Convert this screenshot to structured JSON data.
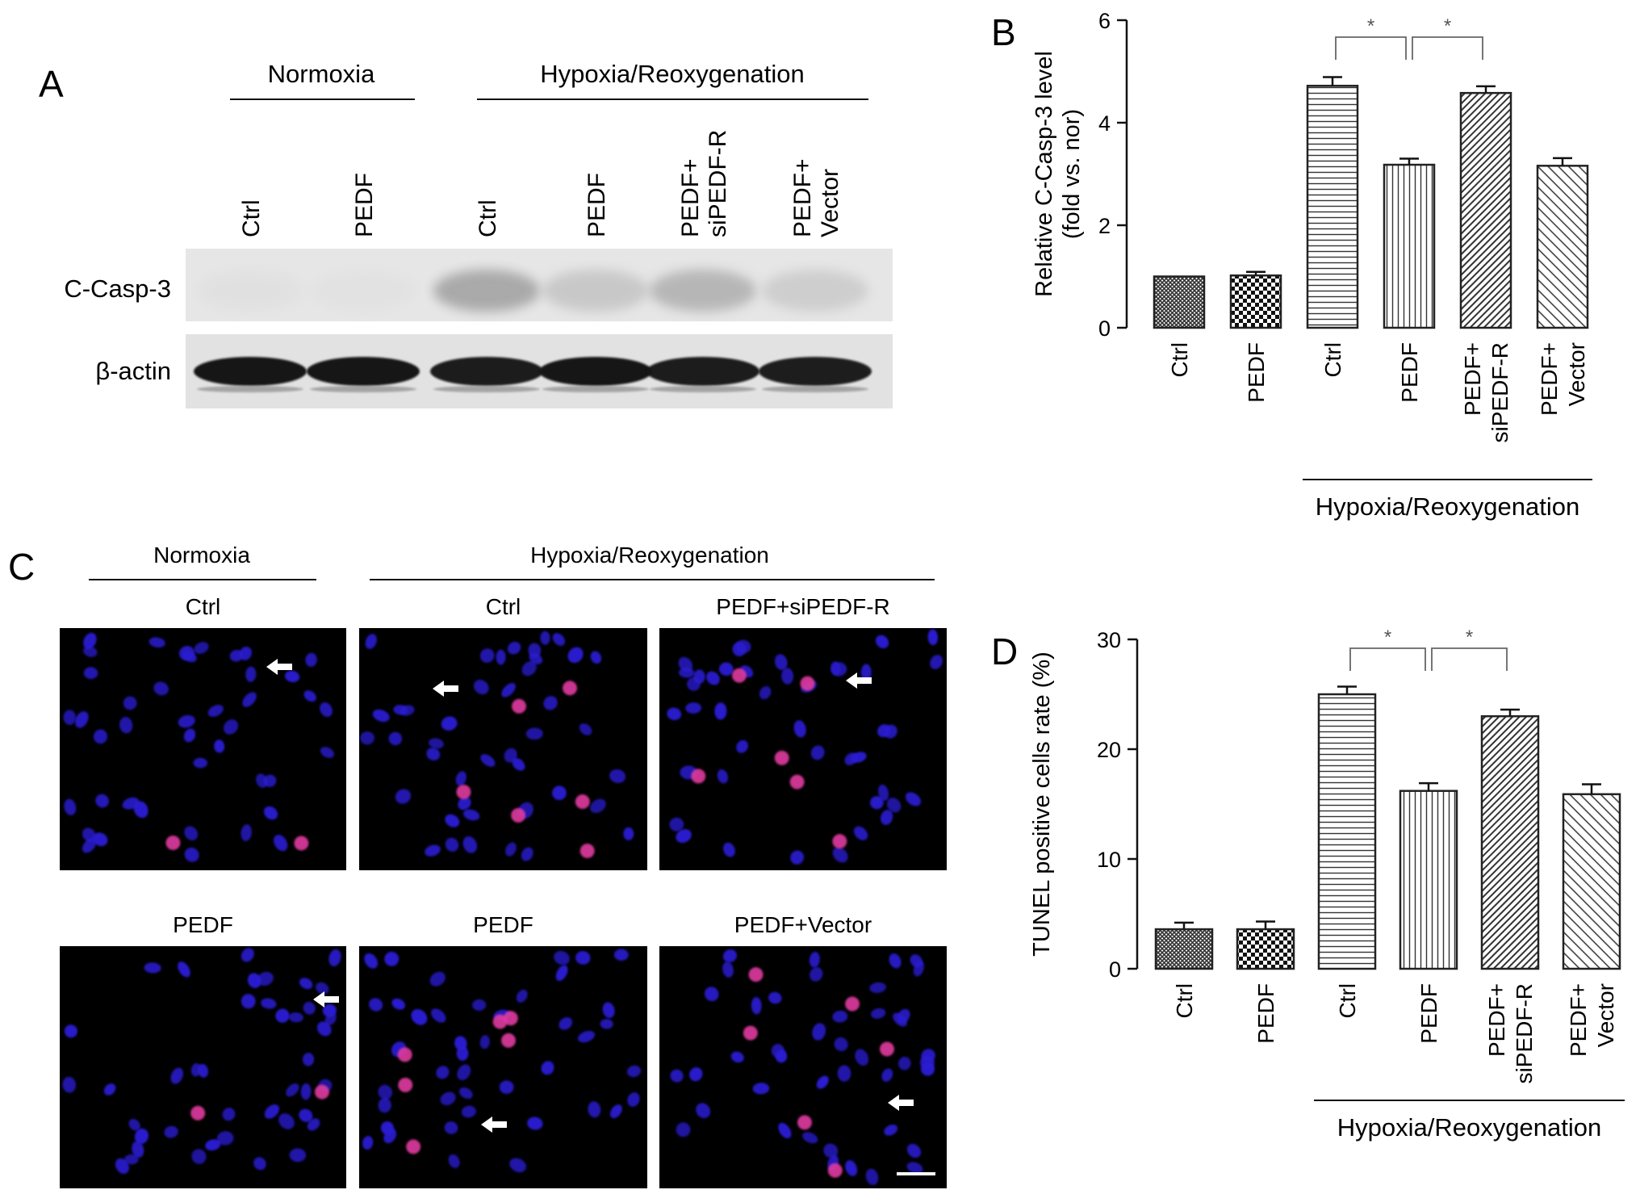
{
  "panel_letters": {
    "a": "A",
    "b": "B",
    "c": "C",
    "d": "D"
  },
  "conditions": {
    "normoxia": "Normoxia",
    "hr": "Hypoxia/Reoxygenation"
  },
  "blot": {
    "lanes": [
      [
        "Ctrl"
      ],
      [
        "PEDF"
      ],
      [
        "Ctrl"
      ],
      [
        "PEDF"
      ],
      [
        "PEDF+",
        "siPEDF-R"
      ],
      [
        "PEDF+",
        "Vector"
      ]
    ],
    "rows": [
      {
        "label": "C-Casp-3",
        "intensity": [
          0.05,
          0.03,
          0.42,
          0.26,
          0.36,
          0.22
        ]
      },
      {
        "label": "β-actin",
        "intensity": [
          1.0,
          1.0,
          0.97,
          1.0,
          0.97,
          0.96
        ]
      }
    ]
  },
  "micrographs": {
    "top_captions": [
      "Ctrl",
      "Ctrl",
      "PEDF+siPEDF-R"
    ],
    "bottom_captions": [
      "PEDF",
      "PEDF",
      "PEDF+Vector"
    ]
  },
  "colors": {
    "nuclei": "#2a1fd0",
    "tunel": "#e03aa0",
    "background": "#000000",
    "bar_edge": "#222222"
  },
  "chart_data": [
    {
      "type": "bar",
      "panel": "B",
      "ylabel_lines": [
        "Relative C-Casp-3 level",
        "(fold vs. nor)"
      ],
      "ylim": [
        0,
        6
      ],
      "yticks": [
        "0",
        "2",
        "4",
        "6"
      ],
      "categories": [
        [
          "Ctrl"
        ],
        [
          "PEDF"
        ],
        [
          "Ctrl"
        ],
        [
          "PEDF"
        ],
        [
          "PEDF+",
          "siPEDF-R"
        ],
        [
          "PEDF+",
          "Vector"
        ]
      ],
      "values": [
        1.0,
        1.02,
        4.72,
        3.18,
        4.58,
        3.16
      ],
      "errors": [
        0.0,
        0.07,
        0.17,
        0.12,
        0.13,
        0.15
      ],
      "patterns": [
        "crosshatch-small",
        "checker",
        "horizontal",
        "vertical",
        "diagonal-dense",
        "diagonal-sparse"
      ],
      "significance": [
        {
          "from": 2,
          "to": 3,
          "label": "*"
        },
        {
          "from": 3,
          "to": 4,
          "label": "*"
        }
      ],
      "group_label": "Hypoxia/Reoxygenation"
    },
    {
      "type": "bar",
      "panel": "D",
      "ylabel_lines": [
        "TUNEL positive cells rate (%)"
      ],
      "ylim": [
        0,
        30
      ],
      "yticks": [
        "0",
        "10",
        "20",
        "30"
      ],
      "categories": [
        [
          "Ctrl"
        ],
        [
          "PEDF"
        ],
        [
          "Ctrl"
        ],
        [
          "PEDF"
        ],
        [
          "PEDF+",
          "siPEDF-R"
        ],
        [
          "PEDF+",
          "Vector"
        ]
      ],
      "values": [
        3.6,
        3.6,
        25.0,
        16.2,
        23.0,
        15.9
      ],
      "errors": [
        0.6,
        0.7,
        0.7,
        0.7,
        0.6,
        0.9
      ],
      "patterns": [
        "crosshatch-small",
        "checker",
        "horizontal",
        "vertical",
        "diagonal-dense",
        "diagonal-sparse"
      ],
      "significance": [
        {
          "from": 2,
          "to": 3,
          "label": "*"
        },
        {
          "from": 3,
          "to": 4,
          "label": "*"
        }
      ],
      "group_label": "Hypoxia/Reoxygenation"
    }
  ]
}
